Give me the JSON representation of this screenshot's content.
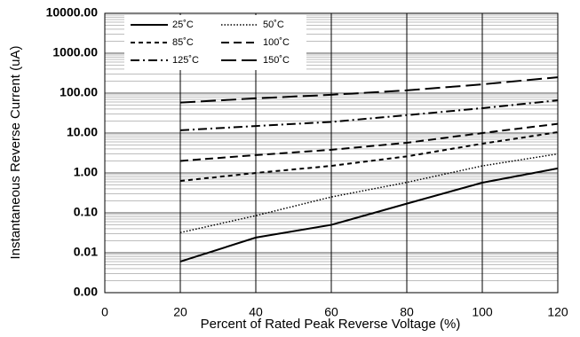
{
  "chart_data": {
    "type": "line",
    "x_label": "Percent of  Rated Peak Reverse Voltage (%)",
    "y_label": "Instantaneous Reverse Current (uA)",
    "x": [
      20,
      40,
      60,
      80,
      100,
      120
    ],
    "xlim": [
      0,
      120
    ],
    "xticks": [
      0,
      20,
      40,
      60,
      80,
      100,
      120
    ],
    "ylim": [
      0.001,
      10000
    ],
    "yticks": [
      {
        "value": 0.001,
        "label": "0.00"
      },
      {
        "value": 0.01,
        "label": "0.01"
      },
      {
        "value": 0.1,
        "label": "0.10"
      },
      {
        "value": 1,
        "label": "1.00"
      },
      {
        "value": 10,
        "label": "10.00"
      },
      {
        "value": 100,
        "label": "100.00"
      },
      {
        "value": 1000,
        "label": "1000.00"
      },
      {
        "value": 10000,
        "label": "10000.00"
      }
    ],
    "log_scale": true,
    "grid": true,
    "legend": "top-left",
    "series": [
      {
        "name": "25˚C",
        "color": "#000000",
        "line_style": "solid",
        "values": [
          0.006,
          0.024,
          0.05,
          0.17,
          0.57,
          1.3
        ]
      },
      {
        "name": "50˚C",
        "color": "#000000",
        "line_style": "dotted",
        "values": [
          0.032,
          0.085,
          0.25,
          0.58,
          1.5,
          3
        ]
      },
      {
        "name": "85˚C",
        "color": "#000000",
        "line_style": "short-dash",
        "values": [
          0.63,
          1.0,
          1.5,
          2.6,
          5.4,
          10.5
        ]
      },
      {
        "name": "100˚C",
        "color": "#000000",
        "line_style": "dash",
        "values": [
          2.0,
          2.8,
          3.8,
          5.7,
          10,
          17
        ]
      },
      {
        "name": "125˚C",
        "color": "#000000",
        "line_style": "dash-dot",
        "values": [
          11.7,
          15,
          19,
          28,
          42,
          66
        ]
      },
      {
        "name": "150˚C",
        "color": "#000000",
        "line_style": "long-dash",
        "values": [
          58,
          74,
          91,
          117,
          166,
          250
        ]
      }
    ]
  }
}
